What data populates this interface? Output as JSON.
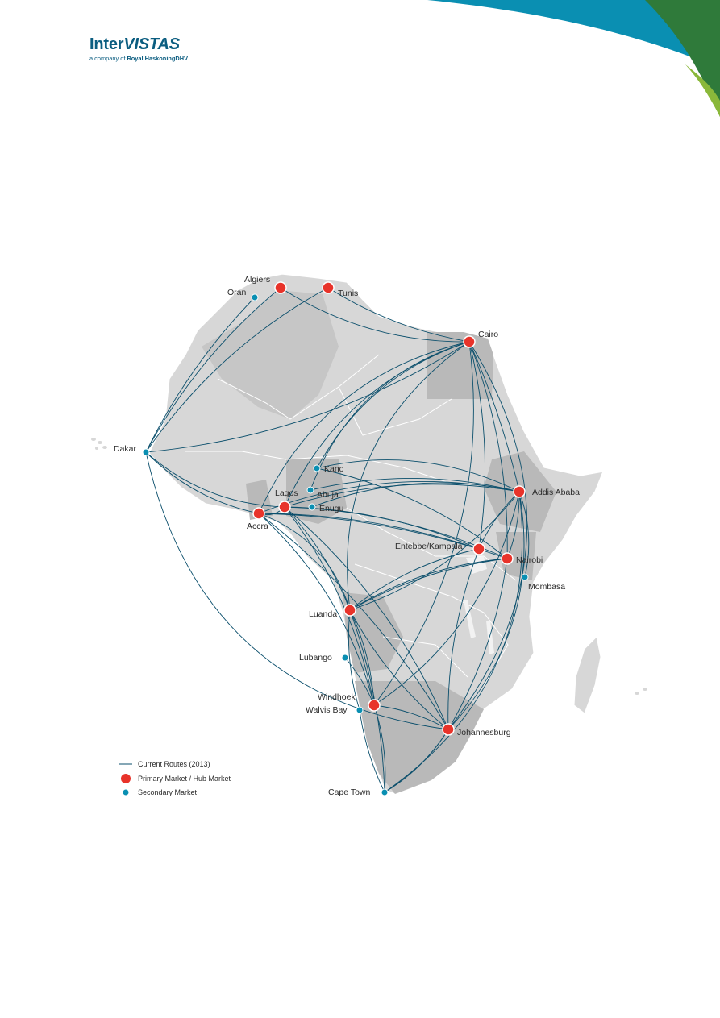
{
  "brand": {
    "name_part1": "Inter",
    "name_part2": "VISTAS",
    "tagline_prefix": "a company of",
    "tagline_company": "Royal HaskoningDHV",
    "colors": {
      "teal": "#0b5d80",
      "blue": "#0a8fb2",
      "green": "#2f7a3a",
      "lime": "#8ab83a"
    }
  },
  "map": {
    "colors": {
      "land": "#d7d7d7",
      "highlight_land": "#b9b9b9",
      "border": "#ffffff",
      "route": "#0b4f6c",
      "primary": "#e8332a",
      "secondary": "#0a8fb2"
    },
    "cities": {
      "algiers": "Algiers",
      "oran": "Oran",
      "tunis": "Tunis",
      "cairo": "Cairo",
      "dakar": "Dakar",
      "kano": "Kano",
      "abuja": "Abuja",
      "lagos": "Lagos",
      "enugu": "Enugu",
      "accra": "Accra",
      "addis": "Addis Ababa",
      "entebbe": "Entebbe/Kampala",
      "nairobi": "Nairobi",
      "mombasa": "Mombasa",
      "luanda": "Luanda",
      "lubango": "Lubango",
      "windhoek": "Windhoek",
      "walvis": "Walvis Bay",
      "johannesburg": "Johannesburg",
      "capetown": "Cape Town"
    },
    "legend": {
      "routes": "Current Routes (2013)",
      "primary": "Primary Market / Hub Market",
      "secondary": "Secondary Market"
    }
  }
}
